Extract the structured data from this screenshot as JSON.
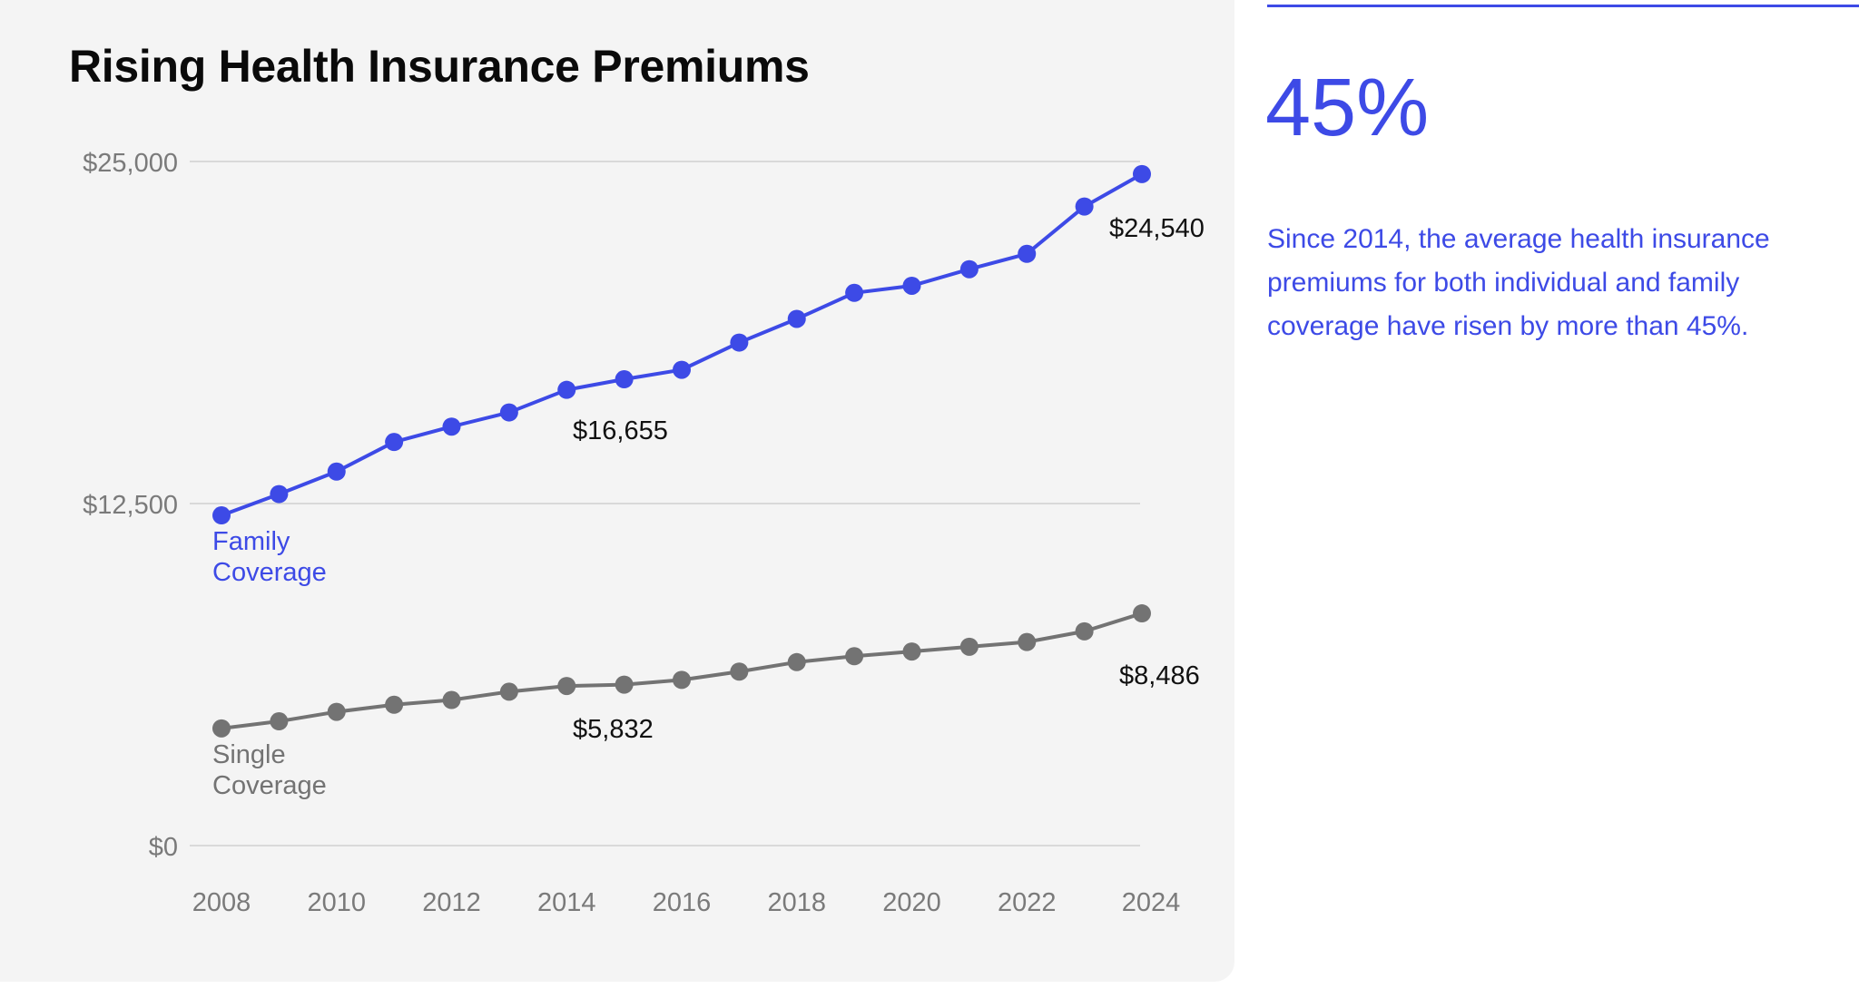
{
  "accent_color": "#3d4ae6",
  "secondary_color": "#737373",
  "chart_data": {
    "type": "line",
    "title": "Rising Health Insurance Premiums",
    "xlabel": "",
    "ylabel": "",
    "x": [
      2008,
      2009,
      2010,
      2011,
      2012,
      2013,
      2014,
      2015,
      2016,
      2017,
      2018,
      2019,
      2020,
      2021,
      2022,
      2023,
      2024
    ],
    "xticks": [
      "2008",
      "2010",
      "2012",
      "2014",
      "2016",
      "2018",
      "2020",
      "2022",
      "2024"
    ],
    "yticks": [
      {
        "value": 0,
        "label": "$0"
      },
      {
        "value": 12500,
        "label": "$12,500"
      },
      {
        "value": 25000,
        "label": "$25,000"
      }
    ],
    "ylim": [
      0,
      25000
    ],
    "grid": "horizontal",
    "series": [
      {
        "name": "Family Coverage",
        "color": "#3d4ae6",
        "values": [
          12068,
          12846,
          13668,
          14749,
          15311,
          15830,
          16655,
          17042,
          17388,
          18383,
          19248,
          20199,
          20458,
          21064,
          21626,
          23356,
          24540
        ]
      },
      {
        "name": "Single Coverage",
        "color": "#737373",
        "values": [
          4282,
          4541,
          4888,
          5147,
          5320,
          5623,
          5832,
          5882,
          6055,
          6358,
          6704,
          6920,
          7093,
          7266,
          7439,
          7829,
          8486
        ]
      }
    ],
    "annotations": [
      {
        "series": 0,
        "x": 2014,
        "label": "$16,655"
      },
      {
        "series": 0,
        "x": 2024,
        "label": "$24,540"
      },
      {
        "series": 1,
        "x": 2014,
        "label": "$5,832"
      },
      {
        "series": 1,
        "x": 2024,
        "label": "$8,486"
      }
    ]
  },
  "stat": {
    "value": "45%",
    "description": "Since 2014, the average health insurance premiums for both individual and family coverage have risen by more than 45%."
  }
}
